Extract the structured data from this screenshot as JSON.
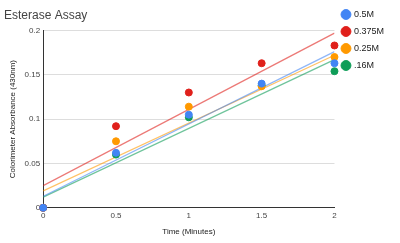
{
  "chart_data": {
    "type": "scatter",
    "title": "Esterase Assay",
    "x_label": "Time (Minutes)",
    "y_label": "Colorimeter Absorbance (430nm)",
    "x": [
      0,
      0.5,
      1,
      1.5,
      2
    ],
    "series": [
      {
        "name": "0.5M",
        "color": "#4285f4",
        "values": [
          0,
          0.062,
          0.105,
          0.14,
          0.163
        ],
        "trendline": {
          "x": [
            0,
            2
          ],
          "values": [
            0.013,
            0.176
          ]
        }
      },
      {
        "name": "0.375M",
        "color": "#e0201b",
        "values": [
          0,
          0.092,
          0.13,
          0.163,
          0.183
        ],
        "trendline": {
          "x": [
            0,
            2
          ],
          "values": [
            0.025,
            0.197
          ]
        }
      },
      {
        "name": "0.25M",
        "color": "#ff9900",
        "values": [
          0,
          0.075,
          0.114,
          0.137,
          0.17
        ],
        "trendline": {
          "x": [
            0,
            2
          ],
          "values": [
            0.019,
            0.172
          ]
        }
      },
      {
        "name": ".16M",
        "color": "#0f9d58",
        "values": [
          0,
          0.06,
          0.102,
          0.138,
          0.154
        ],
        "trendline": {
          "x": [
            0,
            2
          ],
          "values": [
            0.012,
            0.167
          ]
        }
      }
    ],
    "xlim": [
      0,
      2
    ],
    "xticks": [
      0,
      0.5,
      1,
      1.5,
      2
    ],
    "ylim": [
      0,
      0.2
    ],
    "yticks": [
      0,
      0.05,
      0.1,
      0.15,
      0.2
    ],
    "grid": true,
    "legend": "right"
  }
}
